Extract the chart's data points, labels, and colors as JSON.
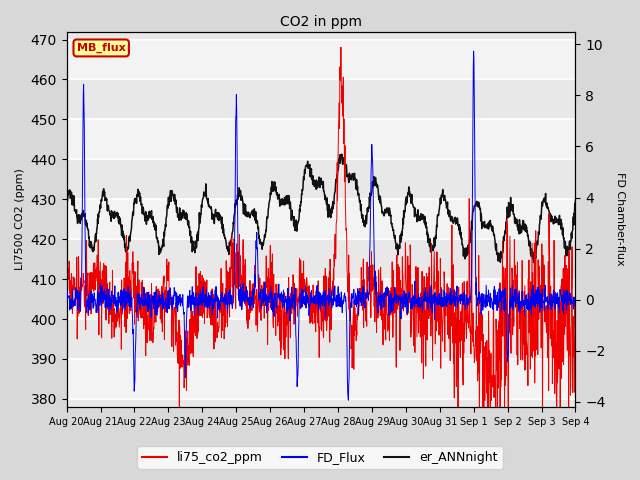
{
  "title": "CO2 in ppm",
  "ylabel_left": "LI7500 CO2 (ppm)",
  "ylabel_right": "FD Chamber-flux",
  "ylim_left": [
    378,
    472
  ],
  "ylim_right": [
    -4.2,
    10.5
  ],
  "yticks_left": [
    380,
    390,
    400,
    410,
    420,
    430,
    440,
    450,
    460,
    470
  ],
  "yticks_right": [
    -4,
    -2,
    0,
    2,
    4,
    6,
    8,
    10
  ],
  "bg_color": "#d8d8d8",
  "plot_bg_color": "#e8e8e8",
  "stripe_color": "#d0d0d0",
  "line_colors": {
    "li75_co2_ppm": "#ee0000",
    "FD_Flux": "#0000ee",
    "er_ANNnight": "#111111"
  },
  "legend_label_box_color": "#ffff99",
  "legend_label_box_edge": "#cc0000",
  "legend_label_text": "MB_flux",
  "n_points": 1500,
  "xtick_labels": [
    "Aug 20",
    "Aug 21",
    "Aug 22",
    "Aug 23",
    "Aug 24",
    "Aug 25",
    "Aug 26",
    "Aug 27",
    "Aug 28",
    "Aug 29",
    "Aug 30",
    "Aug 31",
    "Sep 1",
    "Sep 2",
    "Sep 3",
    "Sep 4"
  ]
}
